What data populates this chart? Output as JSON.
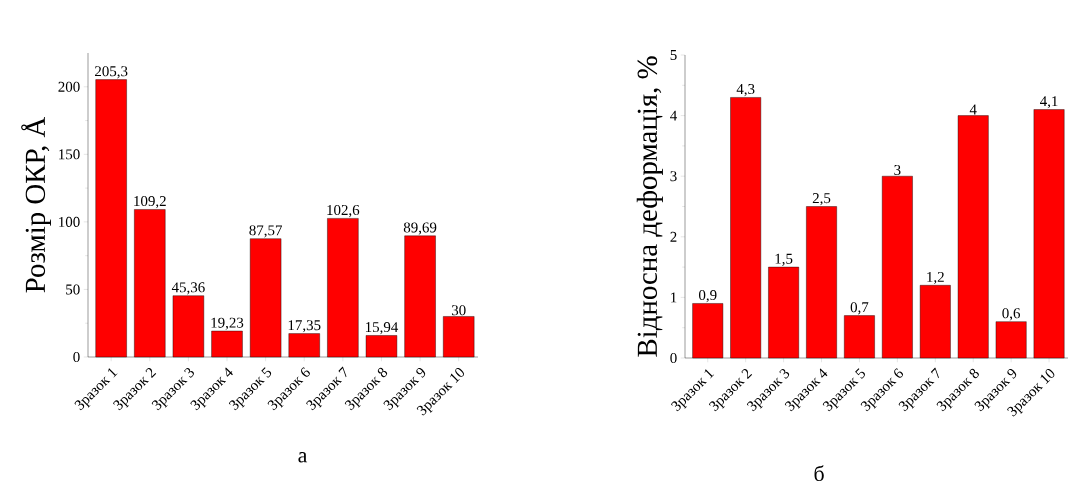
{
  "chart_data": [
    {
      "type": "bar",
      "ylabel": "Розмір ОКР, Å",
      "categories": [
        "Зразок 1",
        "Зразок 2",
        "Зразок 3",
        "Зразок 4",
        "Зразок 5",
        "Зразок 6",
        "Зразок 7",
        "Зразок 8",
        "Зразок 9",
        "Зразок 10"
      ],
      "values": [
        205.3,
        109.2,
        45.36,
        19.23,
        87.57,
        17.35,
        102.6,
        15.94,
        89.69,
        30
      ],
      "value_labels": [
        "205,3",
        "109,2",
        "45,36",
        "19,23",
        "87,57",
        "17,35",
        "102,6",
        "15,94",
        "89,69",
        "30"
      ],
      "color": "#ff0000",
      "ylim": [
        0,
        225
      ],
      "yticks": [
        0,
        50,
        100,
        150,
        200
      ],
      "annotations": [
        "а"
      ]
    },
    {
      "type": "bar",
      "ylabel": "Відносна деформація, %",
      "categories": [
        "Зразок 1",
        "Зразок 2",
        "Зразок 3",
        "Зразок 4",
        "Зразок 5",
        "Зразок 6",
        "Зразок 7",
        "Зразок 8",
        "Зразок 9",
        "Зразок 10"
      ],
      "values": [
        0.9,
        4.3,
        1.5,
        2.5,
        0.7,
        3,
        1.2,
        4,
        0.6,
        4.1
      ],
      "value_labels": [
        "0,9",
        "4,3",
        "1,5",
        "2,5",
        "0,7",
        "3",
        "1,2",
        "4",
        "0,6",
        "4,1"
      ],
      "color": "#ff0000",
      "ylim": [
        0,
        5
      ],
      "yticks": [
        0,
        1,
        2,
        3,
        4,
        5
      ],
      "annotations": [
        "б"
      ]
    }
  ]
}
